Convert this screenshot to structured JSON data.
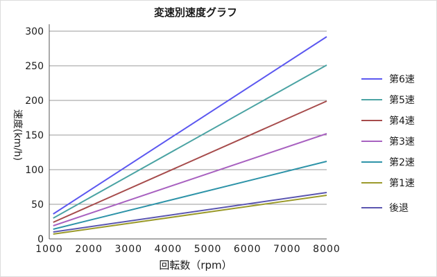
{
  "chart_data": {
    "type": "line",
    "title": "変速別速度グラフ",
    "xlabel": "回転数（rpm）",
    "ylabel": "速度(km/h)",
    "xlim": [
      1000,
      8000
    ],
    "ylim": [
      0,
      300
    ],
    "x_ticks": [
      {
        "value": 1000,
        "label": "1000"
      },
      {
        "value": 2000,
        "label": "2000"
      },
      {
        "value": 3000,
        "label": "3000"
      },
      {
        "value": 4000,
        "label": "4000"
      },
      {
        "value": 5000,
        "label": "5000"
      },
      {
        "value": 6000,
        "label": "6000"
      },
      {
        "value": 7000,
        "label": "7000"
      },
      {
        "value": 8000,
        "label": "8000"
      }
    ],
    "y_ticks": [
      {
        "value": 0,
        "label": "0"
      },
      {
        "value": 50,
        "label": "50"
      },
      {
        "value": 100,
        "label": "100"
      },
      {
        "value": 150,
        "label": "150"
      },
      {
        "value": 200,
        "label": "200"
      },
      {
        "value": 250,
        "label": "250"
      },
      {
        "value": 300,
        "label": "300"
      }
    ],
    "grid": "horizontal",
    "legend_position": "right",
    "series": [
      {
        "name": "第6速",
        "color": "#5b57f0",
        "x": [
          1100,
          8000
        ],
        "y": [
          36,
          292
        ]
      },
      {
        "name": "第5速",
        "color": "#4aa3a3",
        "x": [
          1100,
          8000
        ],
        "y": [
          30,
          251
        ]
      },
      {
        "name": "第4速",
        "color": "#a64b4b",
        "x": [
          1100,
          8000
        ],
        "y": [
          24,
          199
        ]
      },
      {
        "name": "第3速",
        "color": "#a861c0",
        "x": [
          1100,
          8000
        ],
        "y": [
          19,
          152
        ]
      },
      {
        "name": "第2速",
        "color": "#2d93a8",
        "x": [
          1100,
          8000
        ],
        "y": [
          14,
          112
        ]
      },
      {
        "name": "第1速",
        "color": "#9b9a2a",
        "x": [
          1100,
          8000
        ],
        "y": [
          7,
          63
        ]
      },
      {
        "name": "後退",
        "color": "#5a55b0",
        "x": [
          1100,
          8000
        ],
        "y": [
          10,
          67
        ]
      }
    ]
  }
}
